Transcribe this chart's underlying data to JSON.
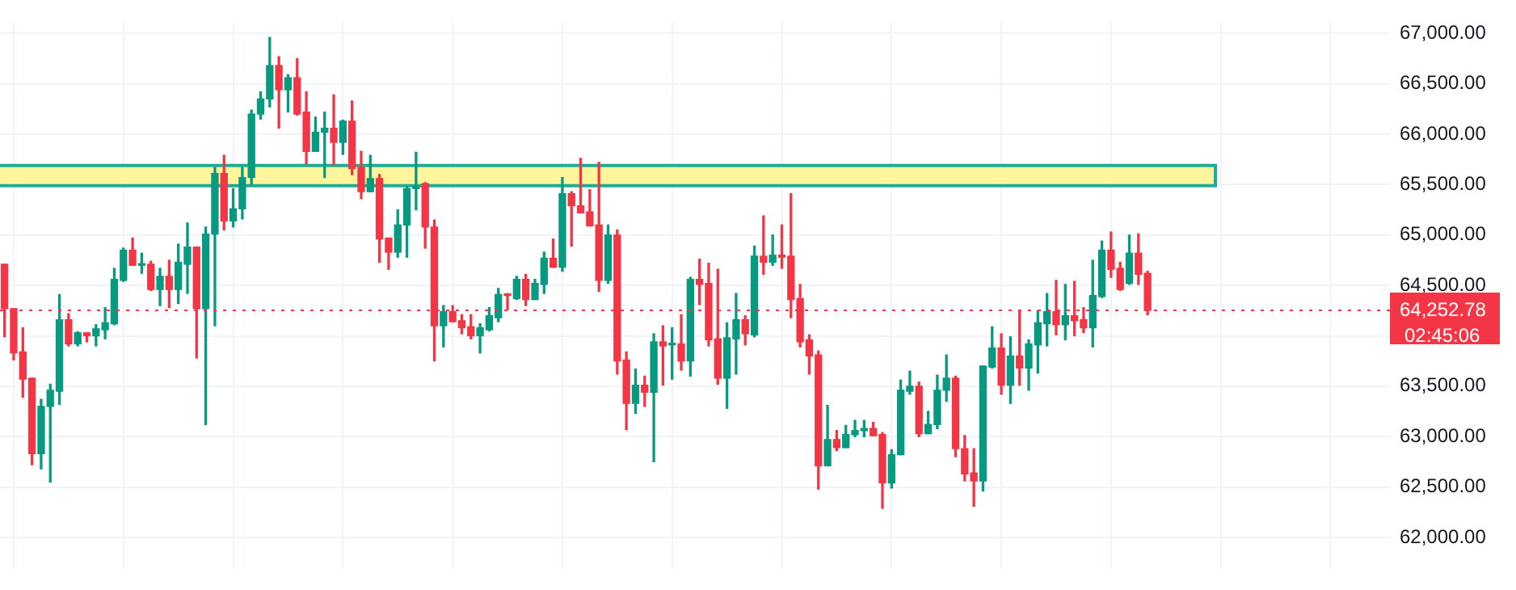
{
  "chart_data": {
    "type": "candlestick",
    "categories": [
      null,
      null,
      null,
      null,
      null,
      null,
      null,
      null,
      null,
      null,
      null,
      null,
      null,
      null,
      null,
      null,
      null,
      null,
      null,
      null,
      null,
      null,
      null,
      null,
      null,
      null,
      null,
      null,
      null,
      null,
      null,
      null,
      null,
      null,
      null,
      null,
      null,
      null,
      null,
      null,
      null,
      null,
      null,
      null,
      null,
      null,
      null,
      null,
      null,
      null,
      null,
      null,
      null,
      null,
      null,
      null,
      null,
      null,
      null,
      null,
      null,
      null,
      null,
      null,
      null,
      null,
      null,
      null,
      null,
      null,
      null,
      null,
      null,
      null,
      null,
      null,
      null,
      null,
      null,
      null,
      null,
      null,
      null,
      null,
      null,
      null,
      null,
      null,
      null,
      null,
      null,
      null,
      null,
      null,
      null,
      null,
      null,
      null,
      null,
      null,
      null,
      null,
      null,
      null,
      null,
      null,
      null,
      null,
      null,
      null,
      null,
      null,
      null,
      null,
      null,
      null,
      null,
      null,
      null,
      null,
      null,
      null,
      null,
      null,
      null,
      null,
      null,
      null,
      null,
      null,
      null,
      null,
      null,
      null,
      null,
      null,
      null,
      null,
      null,
      null,
      null,
      null,
      null,
      null,
      null,
      null,
      null,
      null,
      null,
      null,
      null,
      null
    ],
    "ohlc": [
      [
        64710,
        64710,
        63990,
        64270
      ],
      [
        64270,
        64270,
        63760,
        63830
      ],
      [
        63840,
        64080,
        63390,
        63570
      ],
      [
        63580,
        63580,
        62720,
        62830
      ],
      [
        62830,
        63370,
        62680,
        63300
      ],
      [
        63300,
        63520,
        62550,
        63460
      ],
      [
        63450,
        64410,
        63320,
        64160
      ],
      [
        64160,
        64220,
        63900,
        63920
      ],
      [
        63920,
        64040,
        63900,
        64030
      ],
      [
        64030,
        64030,
        63940,
        64000
      ],
      [
        64000,
        64110,
        63900,
        64070
      ],
      [
        64060,
        64280,
        63970,
        64130
      ],
      [
        64120,
        64670,
        64110,
        64560
      ],
      [
        64550,
        64870,
        64540,
        64850
      ],
      [
        64850,
        64970,
        64700,
        64700
      ],
      [
        64700,
        64820,
        64620,
        64710
      ],
      [
        64710,
        64740,
        64450,
        64460
      ],
      [
        64460,
        64670,
        64300,
        64590
      ],
      [
        64590,
        64750,
        64280,
        64460
      ],
      [
        64460,
        64910,
        64320,
        64730
      ],
      [
        64710,
        65120,
        64420,
        64880
      ],
      [
        64880,
        64880,
        63780,
        64270
      ],
      [
        64270,
        65080,
        63120,
        65010
      ],
      [
        65010,
        65670,
        64100,
        65610
      ],
      [
        65610,
        65790,
        65050,
        65140
      ],
      [
        65140,
        65460,
        65080,
        65260
      ],
      [
        65260,
        65670,
        65160,
        65570
      ],
      [
        65570,
        66240,
        65500,
        66200
      ],
      [
        66200,
        66420,
        66150,
        66350
      ],
      [
        66350,
        66960,
        66270,
        66680
      ],
      [
        66680,
        66770,
        66060,
        66440
      ],
      [
        66440,
        66590,
        66220,
        66560
      ],
      [
        66560,
        66750,
        66190,
        66200
      ],
      [
        66220,
        66420,
        65710,
        65830
      ],
      [
        65830,
        66170,
        65830,
        66020
      ],
      [
        66020,
        66220,
        65570,
        66060
      ],
      [
        66060,
        66390,
        65700,
        65920
      ],
      [
        65920,
        66140,
        65800,
        66130
      ],
      [
        66130,
        66330,
        65600,
        65660
      ],
      [
        65670,
        65830,
        65360,
        65430
      ],
      [
        65430,
        65790,
        65430,
        65560
      ],
      [
        65560,
        65600,
        64730,
        64960
      ],
      [
        64970,
        64970,
        64660,
        64830
      ],
      [
        64830,
        65250,
        64780,
        65100
      ],
      [
        65100,
        65480,
        64780,
        65460
      ],
      [
        65460,
        65820,
        65250,
        65480
      ],
      [
        65510,
        65520,
        64870,
        65080
      ],
      [
        65080,
        65150,
        63750,
        64100
      ],
      [
        64100,
        64300,
        63890,
        64240
      ],
      [
        64240,
        64300,
        64140,
        64140
      ],
      [
        64150,
        64210,
        64020,
        64080
      ],
      [
        64090,
        64210,
        63970,
        64000
      ],
      [
        64000,
        64120,
        63830,
        64080
      ],
      [
        64060,
        64280,
        64050,
        64200
      ],
      [
        64180,
        64470,
        64140,
        64410
      ],
      [
        64410,
        64420,
        64260,
        64400
      ],
      [
        64370,
        64590,
        64360,
        64560
      ],
      [
        64560,
        64610,
        64300,
        64360
      ],
      [
        64360,
        64560,
        64360,
        64520
      ],
      [
        64510,
        64830,
        64420,
        64770
      ],
      [
        64770,
        64960,
        64680,
        64680
      ],
      [
        64680,
        65570,
        64640,
        65410
      ],
      [
        65410,
        65430,
        64890,
        65290
      ],
      [
        65290,
        65760,
        65220,
        65220
      ],
      [
        65230,
        65450,
        65090,
        65090
      ],
      [
        65100,
        65720,
        64440,
        64550
      ],
      [
        64550,
        65100,
        64520,
        65000
      ],
      [
        65000,
        65050,
        63620,
        63750
      ],
      [
        63760,
        63840,
        63070,
        63330
      ],
      [
        63330,
        63670,
        63230,
        63510
      ],
      [
        63510,
        63600,
        63300,
        63440
      ],
      [
        63440,
        64020,
        62750,
        63940
      ],
      [
        63940,
        64100,
        63510,
        63900
      ],
      [
        63910,
        64080,
        63570,
        63920
      ],
      [
        63920,
        64210,
        63660,
        63750
      ],
      [
        63750,
        64580,
        63600,
        64560
      ],
      [
        64560,
        64760,
        64310,
        64510
      ],
      [
        64520,
        64720,
        63900,
        63960
      ],
      [
        63970,
        64660,
        63520,
        63580
      ],
      [
        63580,
        64130,
        63280,
        63980
      ],
      [
        63970,
        64420,
        63620,
        64160
      ],
      [
        64160,
        64200,
        63910,
        64020
      ],
      [
        64010,
        64890,
        63990,
        64790
      ],
      [
        64790,
        65190,
        64610,
        64730
      ],
      [
        64730,
        65000,
        64700,
        64800
      ],
      [
        64800,
        65100,
        64670,
        64780
      ],
      [
        64790,
        65410,
        64180,
        64360
      ],
      [
        64370,
        64510,
        63890,
        63940
      ],
      [
        63960,
        64010,
        63620,
        63800
      ],
      [
        63810,
        63850,
        62480,
        62710
      ],
      [
        62710,
        63310,
        62710,
        62970
      ],
      [
        62970,
        63060,
        62860,
        62890
      ],
      [
        62890,
        63110,
        62890,
        63020
      ],
      [
        63020,
        63160,
        63000,
        63060
      ],
      [
        63060,
        63160,
        63000,
        63080
      ],
      [
        63080,
        63140,
        63010,
        63010
      ],
      [
        63020,
        63040,
        62290,
        62540
      ],
      [
        62540,
        62870,
        62490,
        62820
      ],
      [
        62820,
        63560,
        62820,
        63460
      ],
      [
        63450,
        63650,
        63420,
        63500
      ],
      [
        63500,
        63540,
        63000,
        63030
      ],
      [
        63030,
        63250,
        63030,
        63120
      ],
      [
        63120,
        63610,
        63080,
        63460
      ],
      [
        63460,
        63810,
        63350,
        63580
      ],
      [
        63580,
        63600,
        62800,
        62880
      ],
      [
        62880,
        63010,
        62560,
        62630
      ],
      [
        62640,
        62880,
        62310,
        62560
      ],
      [
        62560,
        63700,
        62460,
        63700
      ],
      [
        63690,
        64090,
        63680,
        63880
      ],
      [
        63880,
        64020,
        63420,
        63510
      ],
      [
        63510,
        63990,
        63330,
        63800
      ],
      [
        63800,
        64250,
        63510,
        63680
      ],
      [
        63680,
        63960,
        63460,
        63920
      ],
      [
        63910,
        64250,
        63630,
        64130
      ],
      [
        64120,
        64420,
        63900,
        64240
      ],
      [
        64240,
        64550,
        64010,
        64110
      ],
      [
        64110,
        64510,
        63960,
        64200
      ],
      [
        64200,
        64540,
        64000,
        64150
      ],
      [
        64160,
        64280,
        64030,
        64080
      ],
      [
        64080,
        64750,
        63890,
        64400
      ],
      [
        64390,
        64940,
        64380,
        64850
      ],
      [
        64850,
        65030,
        64580,
        64660
      ],
      [
        64670,
        64730,
        64450,
        64460
      ],
      [
        64520,
        65000,
        64510,
        64820
      ],
      [
        64820,
        65010,
        64510,
        64610
      ],
      [
        64620,
        64640,
        64210,
        64252.78
      ],
      null,
      null,
      null,
      null,
      null,
      null,
      null,
      null,
      null,
      null,
      null,
      null,
      null,
      null,
      null,
      null,
      null,
      null,
      null,
      null,
      null,
      null,
      null,
      null,
      null,
      null
    ],
    "colors": [
      "#f23645",
      "#f23645",
      "#f23645",
      "#f23645",
      "#089981",
      "#089981",
      "#089981",
      "#f23645",
      "#089981",
      "#f23645",
      "#089981",
      "#089981",
      "#089981",
      "#089981",
      "#f23645",
      "#089981",
      "#f23645",
      "#089981",
      "#f23645",
      "#089981",
      "#089981",
      "#f23645",
      "#089981",
      "#089981",
      "#f23645",
      "#089981",
      "#089981",
      "#089981",
      "#089981",
      "#089981",
      "#f23645",
      "#089981",
      "#f23645",
      "#f23645",
      "#089981",
      "#089981",
      "#f23645",
      "#089981",
      "#f23645",
      "#f23645",
      "#089981",
      "#f23645",
      "#f23645",
      "#089981",
      "#089981",
      "#089981",
      "#f23645",
      "#f23645",
      "#089981",
      "#f23645",
      "#f23645",
      "#f23645",
      "#089981",
      "#089981",
      "#089981",
      "#f23645",
      "#089981",
      "#f23645",
      "#089981",
      "#089981",
      "#f23645",
      "#089981",
      "#f23645",
      "#f23645",
      "#f23645",
      "#f23645",
      "#089981",
      "#f23645",
      "#f23645",
      "#089981",
      "#f23645",
      "#089981",
      "#f23645",
      "#089981",
      "#f23645",
      "#089981",
      "#f23645",
      "#f23645",
      "#f23645",
      "#089981",
      "#089981",
      "#f23645",
      "#089981",
      "#f23645",
      "#089981",
      "#f23645",
      "#f23645",
      "#f23645",
      "#f23645",
      "#f23645",
      "#089981",
      "#f23645",
      "#089981",
      "#089981",
      "#089981",
      "#f23645",
      "#f23645",
      "#089981",
      "#089981",
      "#089981",
      "#f23645",
      "#089981",
      "#089981",
      "#089981",
      "#f23645",
      "#f23645",
      "#f23645",
      "#089981",
      "#089981",
      "#f23645",
      "#089981",
      "#f23645",
      "#089981",
      "#089981",
      "#089981",
      "#f23645",
      "#089981",
      "#f23645",
      "#f23645",
      "#089981",
      "#089981",
      "#f23645",
      "#f23645",
      "#089981",
      "#f23645",
      "#f23645",
      null,
      null,
      null,
      null,
      null,
      null,
      null,
      null,
      null,
      null,
      null,
      null,
      null,
      null,
      null,
      null,
      null,
      null,
      null,
      null,
      null,
      null,
      null,
      null,
      null,
      null
    ],
    "ylim": [
      61690,
      67120
    ],
    "yticks": [
      {
        "value": 62000,
        "label": "62,000.00"
      },
      {
        "value": 62500,
        "label": "62,500.00"
      },
      {
        "value": 63000,
        "label": "63,000.00"
      },
      {
        "value": 63500,
        "label": "63,500.00"
      },
      {
        "value": 64000,
        "label": null
      },
      {
        "value": 64500,
        "label": "64,500.00"
      },
      {
        "value": 65000,
        "label": "65,000.00"
      },
      {
        "value": 65500,
        "label": "65,500.00"
      },
      {
        "value": 66000,
        "label": "66,000.00"
      },
      {
        "value": 66500,
        "label": "66,500.00"
      },
      {
        "value": 67000,
        "label": "67,000.00"
      }
    ],
    "grid": true,
    "tick_labels": "y",
    "legend": false,
    "bands": [
      {
        "axis": "y",
        "from": 65490,
        "to": 65690,
        "color": "#fff59d"
      }
    ],
    "ref_lines": [
      {
        "axis": "y",
        "value": 64252.78,
        "label": "64,252.78",
        "color": "#f23645",
        "line_style": "dotted"
      }
    ],
    "annotations": [
      "02:45:06"
    ]
  }
}
